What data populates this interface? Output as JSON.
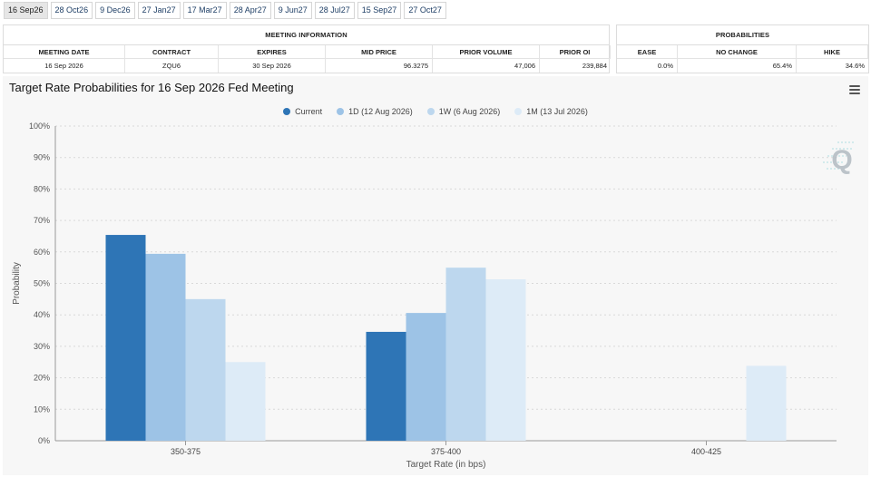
{
  "tabs": [
    {
      "label": "16 Sep26",
      "active": true
    },
    {
      "label": "28 Oct26",
      "active": false
    },
    {
      "label": "9 Dec26",
      "active": false
    },
    {
      "label": "27 Jan27",
      "active": false
    },
    {
      "label": "17 Mar27",
      "active": false
    },
    {
      "label": "28 Apr27",
      "active": false
    },
    {
      "label": "9 Jun27",
      "active": false
    },
    {
      "label": "28 Jul27",
      "active": false
    },
    {
      "label": "15 Sep27",
      "active": false
    },
    {
      "label": "27 Oct27",
      "active": false
    }
  ],
  "meeting_info": {
    "title": "MEETING INFORMATION",
    "headers": [
      "MEETING DATE",
      "CONTRACT",
      "EXPIRES",
      "MID PRICE",
      "PRIOR VOLUME",
      "PRIOR OI"
    ],
    "row": [
      "16 Sep 2026",
      "ZQU6",
      "30 Sep 2026",
      "96.3275",
      "47,006",
      "239,884"
    ]
  },
  "probabilities": {
    "title": "PROBABILITIES",
    "headers": [
      "EASE",
      "NO CHANGE",
      "HIKE"
    ],
    "row": [
      "0.0%",
      "65.4%",
      "34.6%"
    ]
  },
  "chart_title": "Target Rate Probabilities for 16 Sep 2026 Fed Meeting",
  "chart_menu_icon": "hamburger-menu-icon",
  "watermark_icon": "q-logo-icon",
  "chart_data": {
    "type": "bar",
    "categories": [
      "350-375",
      "375-400",
      "400-425"
    ],
    "series": [
      {
        "name": "Current",
        "color": "#2e75b6",
        "values": [
          65.4,
          34.6,
          0
        ]
      },
      {
        "name": "1D (12 Aug 2026)",
        "color": "#9dc3e6",
        "values": [
          59.4,
          40.6,
          0
        ]
      },
      {
        "name": "1W (6 Aug 2026)",
        "color": "#bdd7ee",
        "values": [
          45.0,
          55.0,
          0
        ]
      },
      {
        "name": "1M (13 Jul 2026)",
        "color": "#ddebf7",
        "values": [
          25.0,
          51.3,
          23.8
        ]
      }
    ],
    "y_ticks": [
      "0%",
      "10%",
      "20%",
      "30%",
      "40%",
      "50%",
      "60%",
      "70%",
      "80%",
      "90%",
      "100%"
    ],
    "ylim": [
      0,
      100
    ],
    "xlabel": "Target Rate (in bps)",
    "ylabel": "Probability",
    "grid": true,
    "legend_position": "top-center"
  }
}
